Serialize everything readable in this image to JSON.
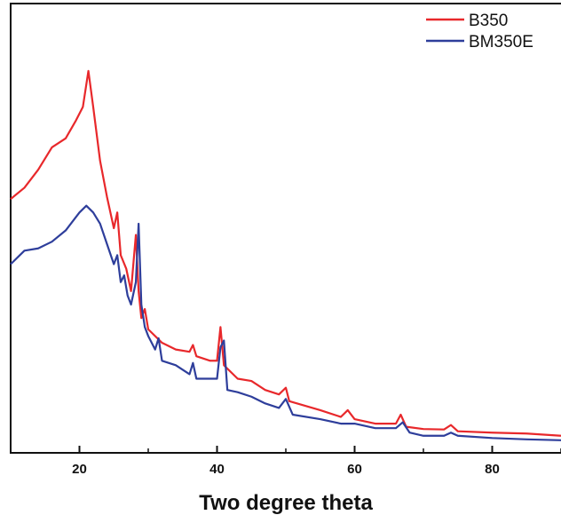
{
  "chart_data": {
    "type": "line",
    "title": "",
    "xlabel": "Two degree theta",
    "ylabel": "",
    "xlim": [
      10,
      90
    ],
    "ylim": [
      0,
      100
    ],
    "xticks": [
      20,
      40,
      60,
      80
    ],
    "grid": false,
    "legend_position": "top-right",
    "series": [
      {
        "name": "B350",
        "color": "#e8282b",
        "points": [
          [
            10,
            56.5
          ],
          [
            12,
            59
          ],
          [
            14,
            63
          ],
          [
            16,
            68
          ],
          [
            18,
            70
          ],
          [
            19.5,
            74
          ],
          [
            20.5,
            77
          ],
          [
            21.3,
            85
          ],
          [
            22,
            77
          ],
          [
            23,
            65
          ],
          [
            24,
            57
          ],
          [
            25,
            50
          ],
          [
            25.5,
            53.5
          ],
          [
            26,
            44
          ],
          [
            26.8,
            41
          ],
          [
            27.5,
            36
          ],
          [
            28.2,
            48.5
          ],
          [
            28.6,
            36
          ],
          [
            29,
            30
          ],
          [
            29.5,
            32
          ],
          [
            30,
            27.5
          ],
          [
            32,
            24.5
          ],
          [
            34,
            23
          ],
          [
            36,
            22.5
          ],
          [
            36.5,
            24
          ],
          [
            37,
            21.5
          ],
          [
            39,
            20.5
          ],
          [
            40,
            20.5
          ],
          [
            40.5,
            28
          ],
          [
            41,
            19.5
          ],
          [
            43,
            16.5
          ],
          [
            45,
            16
          ],
          [
            47,
            14
          ],
          [
            49,
            13
          ],
          [
            50,
            14.5
          ],
          [
            50.5,
            11.5
          ],
          [
            55,
            9.5
          ],
          [
            58,
            8
          ],
          [
            59,
            9.5
          ],
          [
            60,
            7.5
          ],
          [
            63,
            6.5
          ],
          [
            66,
            6.5
          ],
          [
            66.7,
            8.5
          ],
          [
            67.5,
            5.8
          ],
          [
            70,
            5.3
          ],
          [
            73,
            5.2
          ],
          [
            74,
            6.2
          ],
          [
            75,
            4.8
          ],
          [
            80,
            4.5
          ],
          [
            85,
            4.3
          ],
          [
            90,
            3.8
          ]
        ]
      },
      {
        "name": "BM350E",
        "color": "#2e3e9b",
        "points": [
          [
            10,
            42
          ],
          [
            12,
            45
          ],
          [
            14,
            45.5
          ],
          [
            16,
            47
          ],
          [
            18,
            49.5
          ],
          [
            20,
            53.5
          ],
          [
            21,
            55
          ],
          [
            22,
            53.5
          ],
          [
            23,
            51
          ],
          [
            24,
            46.5
          ],
          [
            25,
            42
          ],
          [
            25.5,
            44
          ],
          [
            26,
            38
          ],
          [
            26.5,
            39.5
          ],
          [
            27,
            35
          ],
          [
            27.5,
            33
          ],
          [
            28.2,
            38
          ],
          [
            28.6,
            51
          ],
          [
            29,
            33
          ],
          [
            29.5,
            28
          ],
          [
            30,
            26
          ],
          [
            31,
            23
          ],
          [
            31.5,
            25.5
          ],
          [
            32,
            20.5
          ],
          [
            34,
            19.5
          ],
          [
            36,
            17.5
          ],
          [
            36.5,
            20
          ],
          [
            37,
            16.5
          ],
          [
            39,
            16.5
          ],
          [
            40,
            16.5
          ],
          [
            40.5,
            23.5
          ],
          [
            41,
            25
          ],
          [
            41.5,
            14
          ],
          [
            43,
            13.5
          ],
          [
            45,
            12.5
          ],
          [
            47,
            11
          ],
          [
            49,
            10
          ],
          [
            50,
            12
          ],
          [
            51,
            8.5
          ],
          [
            55,
            7.5
          ],
          [
            58,
            6.5
          ],
          [
            60,
            6.5
          ],
          [
            63,
            5.5
          ],
          [
            66,
            5.5
          ],
          [
            67,
            6.8
          ],
          [
            68,
            4.5
          ],
          [
            70,
            3.8
          ],
          [
            73,
            3.8
          ],
          [
            74,
            4.5
          ],
          [
            75,
            3.8
          ],
          [
            80,
            3.3
          ],
          [
            85,
            3.0
          ],
          [
            90,
            2.8
          ]
        ]
      }
    ]
  }
}
